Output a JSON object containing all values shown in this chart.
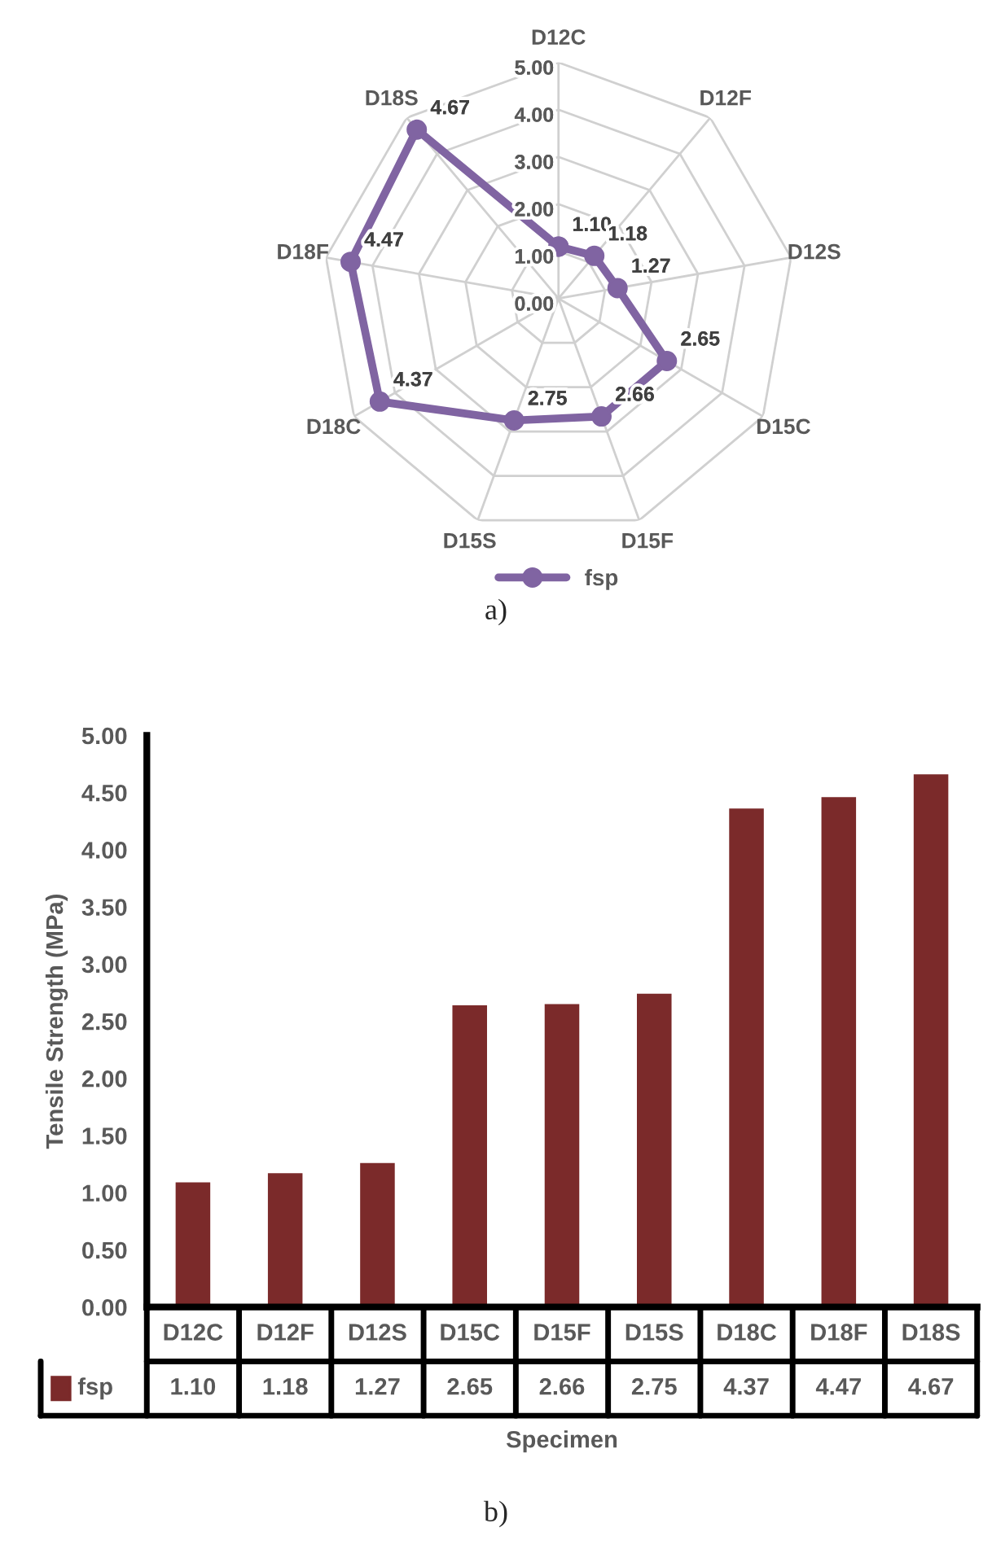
{
  "chart_data": [
    {
      "type": "radar",
      "categories": [
        "D12C",
        "D12F",
        "D12S",
        "D15C",
        "D15F",
        "D15S",
        "D18C",
        "D18F",
        "D18S"
      ],
      "series": [
        {
          "name": "fsp",
          "color": "#8064a2",
          "values": [
            1.1,
            1.18,
            1.27,
            2.65,
            2.66,
            2.75,
            4.37,
            4.47,
            4.67
          ],
          "value_labels": [
            "1.10",
            "1.18",
            "1.27",
            "2.65",
            "2.66",
            "2.75",
            "4.37",
            "4.47",
            "4.67"
          ]
        }
      ],
      "ylim": [
        0,
        5
      ],
      "yticks": [
        {
          "value": 0,
          "label": "0.00"
        },
        {
          "value": 1,
          "label": "1.00"
        },
        {
          "value": 2,
          "label": "2.00"
        },
        {
          "value": 3,
          "label": "3.00"
        },
        {
          "value": 4,
          "label": "4.00"
        },
        {
          "value": 5,
          "label": "5.00"
        }
      ],
      "grid": true,
      "data_labels": true,
      "legend": "bottom",
      "marker": "circle",
      "annotations": [
        "a)"
      ]
    },
    {
      "type": "bar",
      "categories": [
        "D12C",
        "D12F",
        "D12S",
        "D15C",
        "D15F",
        "D15S",
        "D18C",
        "D18F",
        "D18S"
      ],
      "series": [
        {
          "name": "fsp",
          "color": "#7b2a2a",
          "values": [
            1.1,
            1.18,
            1.27,
            2.65,
            2.66,
            2.75,
            4.37,
            4.47,
            4.67
          ],
          "value_labels": [
            "1.10",
            "1.18",
            "1.27",
            "2.65",
            "2.66",
            "2.75",
            "4.37",
            "4.47",
            "4.67"
          ]
        }
      ],
      "ylim": [
        0,
        5
      ],
      "yticks": [
        {
          "value": 0,
          "label": "0.00"
        },
        {
          "value": 0.5,
          "label": "0.50"
        },
        {
          "value": 1,
          "label": "1.00"
        },
        {
          "value": 1.5,
          "label": "1.50"
        },
        {
          "value": 2,
          "label": "2.00"
        },
        {
          "value": 2.5,
          "label": "2.50"
        },
        {
          "value": 3,
          "label": "3.00"
        },
        {
          "value": 3.5,
          "label": "3.50"
        },
        {
          "value": 4,
          "label": "4.00"
        },
        {
          "value": 4.5,
          "label": "4.50"
        },
        {
          "value": 5,
          "label": "5.00"
        }
      ],
      "xlabel": "Specimen",
      "ylabel": "Tensile Strength (MPa)",
      "data_labels": true,
      "legend": "bottom",
      "annotations": [
        "b)"
      ]
    }
  ]
}
